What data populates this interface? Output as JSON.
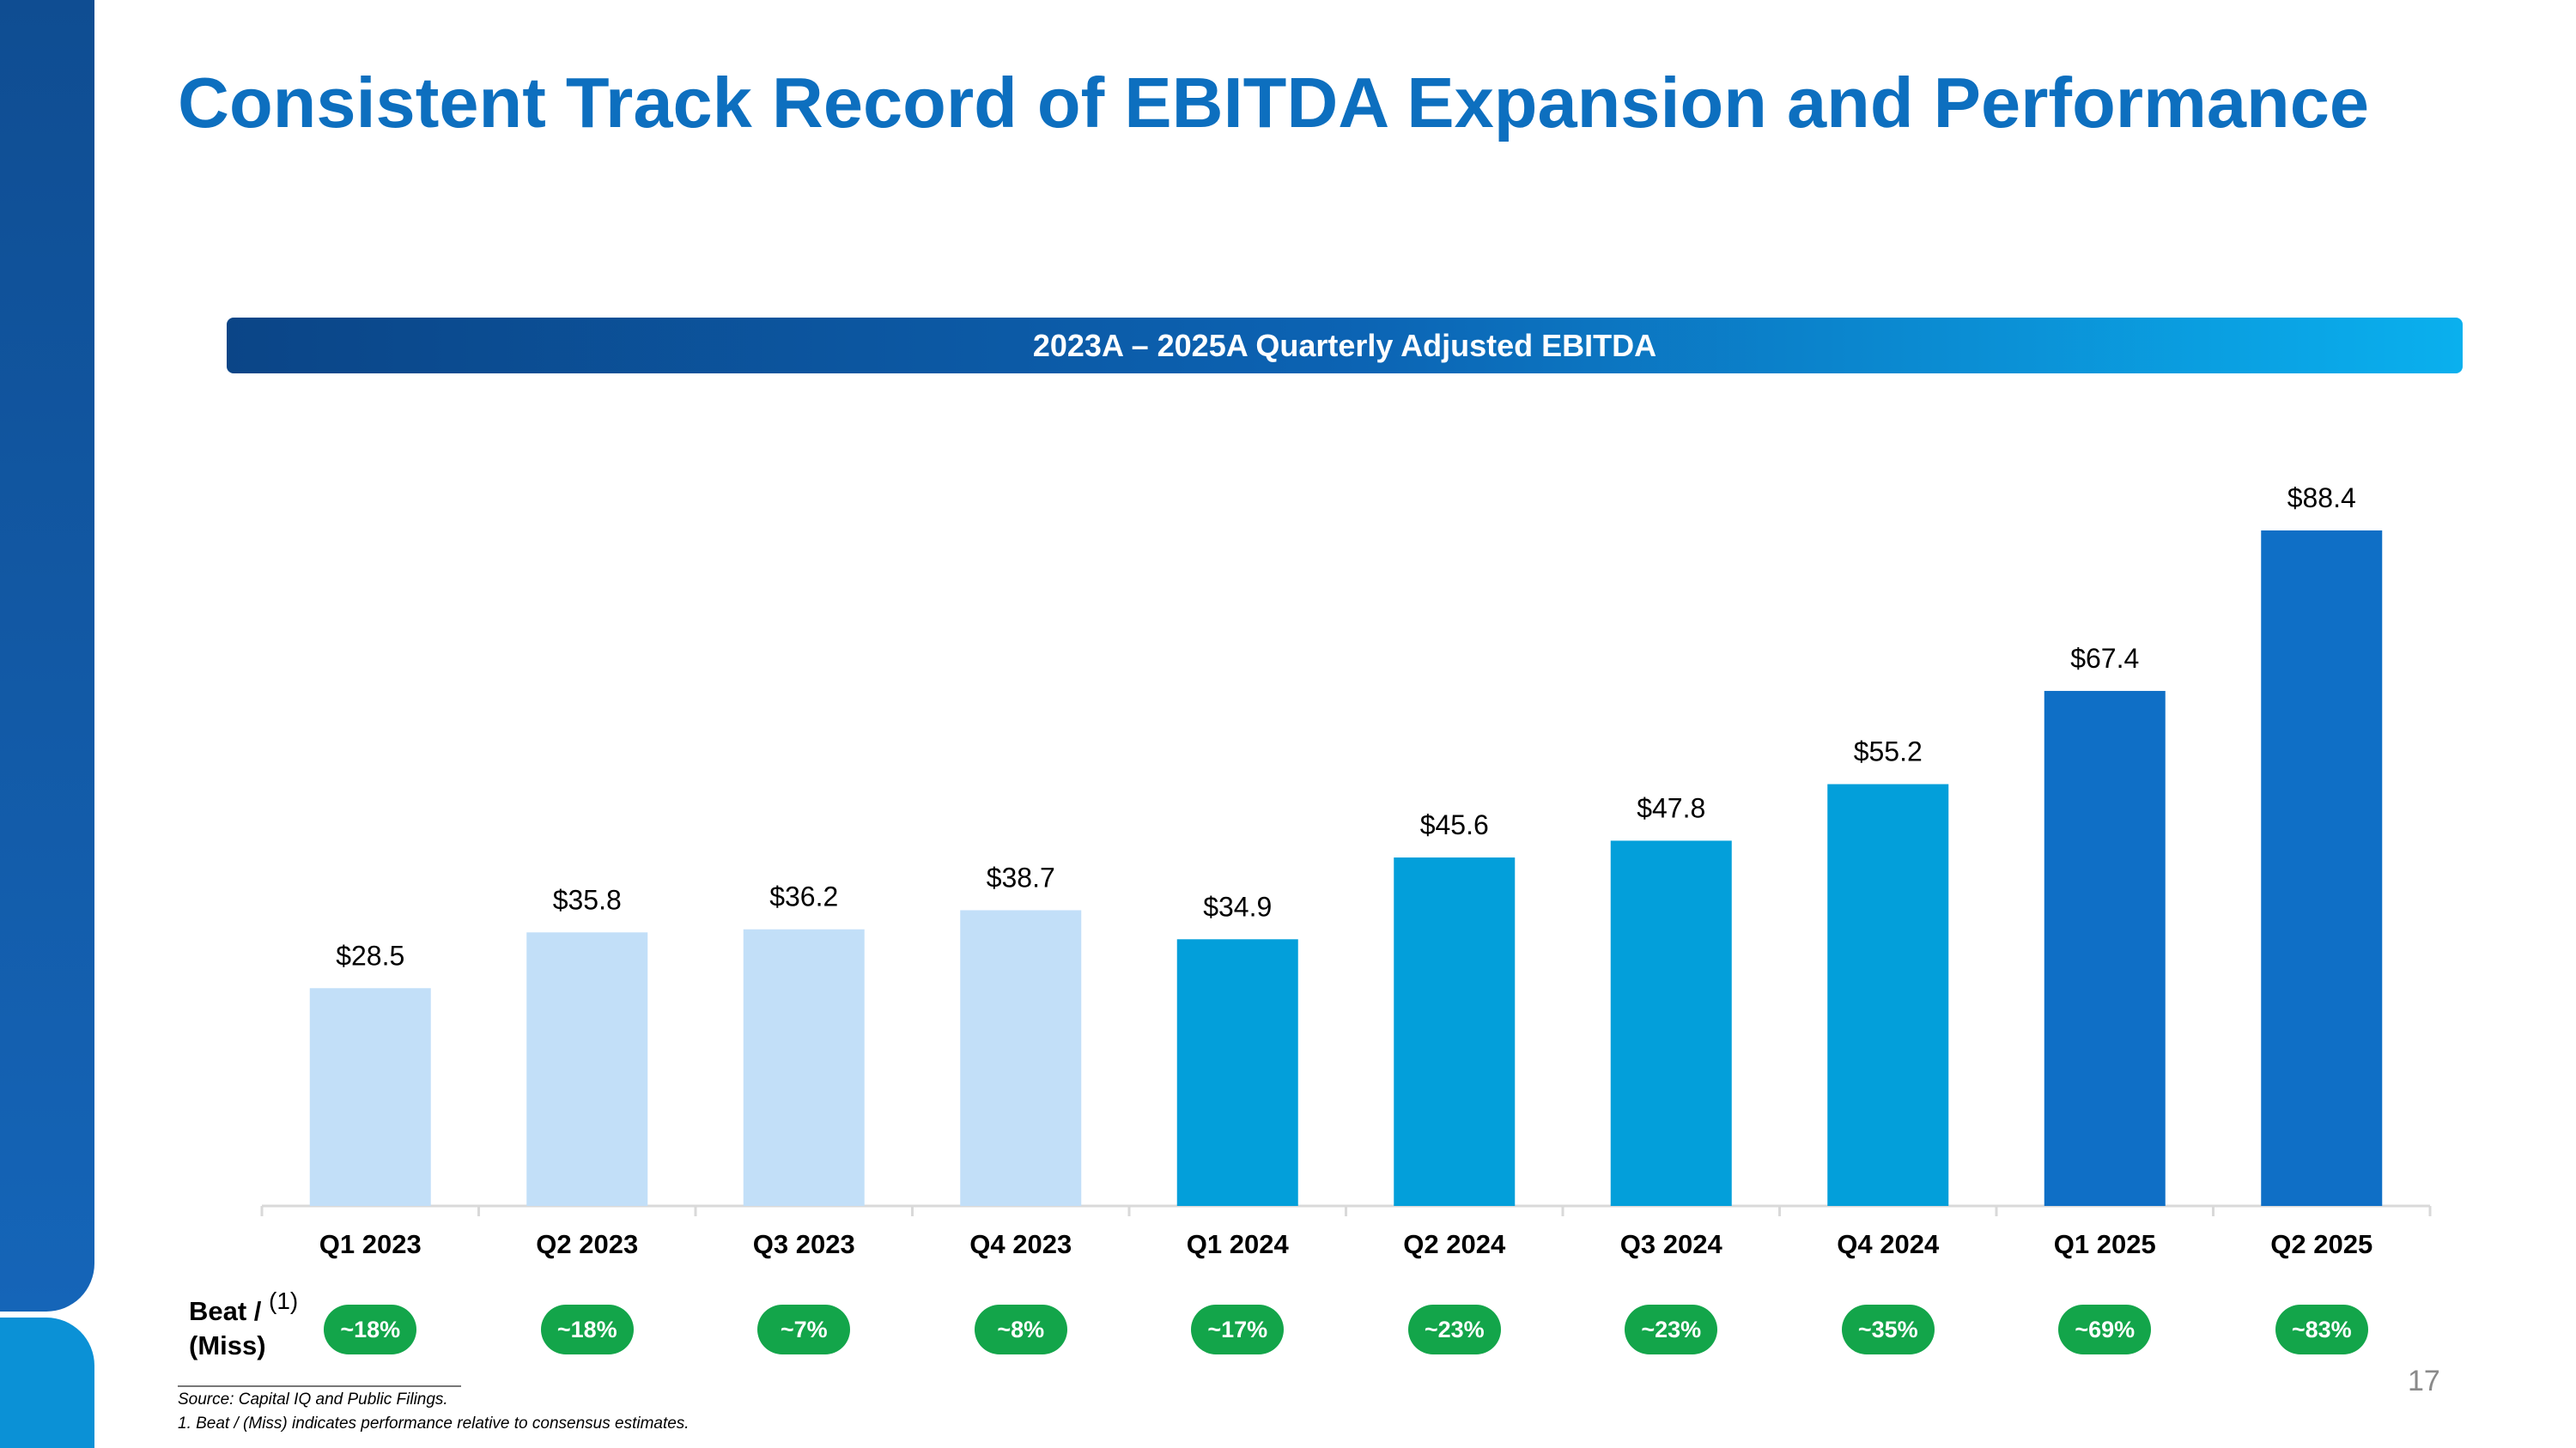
{
  "title": "Consistent Track Record of EBITDA Expansion and Performance",
  "banner": "2023A – 2025A Quarterly Adjusted EBITDA",
  "colors": {
    "title": "#0d6fbf",
    "bar_2023": "#c2dff8",
    "bar_2024": "#039fda",
    "bar_2025": "#0f6fc6",
    "beat_pill": "#13a54a"
  },
  "chart_data": {
    "type": "bar",
    "title": "2023A – 2025A Quarterly Adjusted EBITDA",
    "categories": [
      "Q1 2023",
      "Q2 2023",
      "Q3 2023",
      "Q4 2023",
      "Q1 2024",
      "Q2 2024",
      "Q3 2024",
      "Q4 2024",
      "Q1 2025",
      "Q2 2025"
    ],
    "values": [
      28.5,
      35.8,
      36.2,
      38.7,
      34.9,
      45.6,
      47.8,
      55.2,
      67.4,
      88.4
    ],
    "value_labels": [
      "$28.5",
      "$35.8",
      "$36.2",
      "$38.7",
      "$34.9",
      "$45.6",
      "$47.8",
      "$55.2",
      "$67.4",
      "$88.4"
    ],
    "bar_colors": [
      "#c2dff8",
      "#c2dff8",
      "#c2dff8",
      "#c2dff8",
      "#039fda",
      "#039fda",
      "#039fda",
      "#039fda",
      "#0f6fc6",
      "#0f6fc6"
    ],
    "ylim": [
      0,
      88.4
    ],
    "grid": false,
    "legend": "none",
    "beat_miss_label": "Beat / (Miss)",
    "beat_miss_superscript": "(1)",
    "beat_miss": [
      "~18%",
      "~18%",
      "~7%",
      "~8%",
      "~17%",
      "~23%",
      "~23%",
      "~35%",
      "~69%",
      "~83%"
    ]
  },
  "footnotes": {
    "source": "Source: Capital IQ and Public Filings.",
    "note_1": "1. Beat / (Miss) indicates performance relative to consensus estimates."
  },
  "page_number": "17"
}
